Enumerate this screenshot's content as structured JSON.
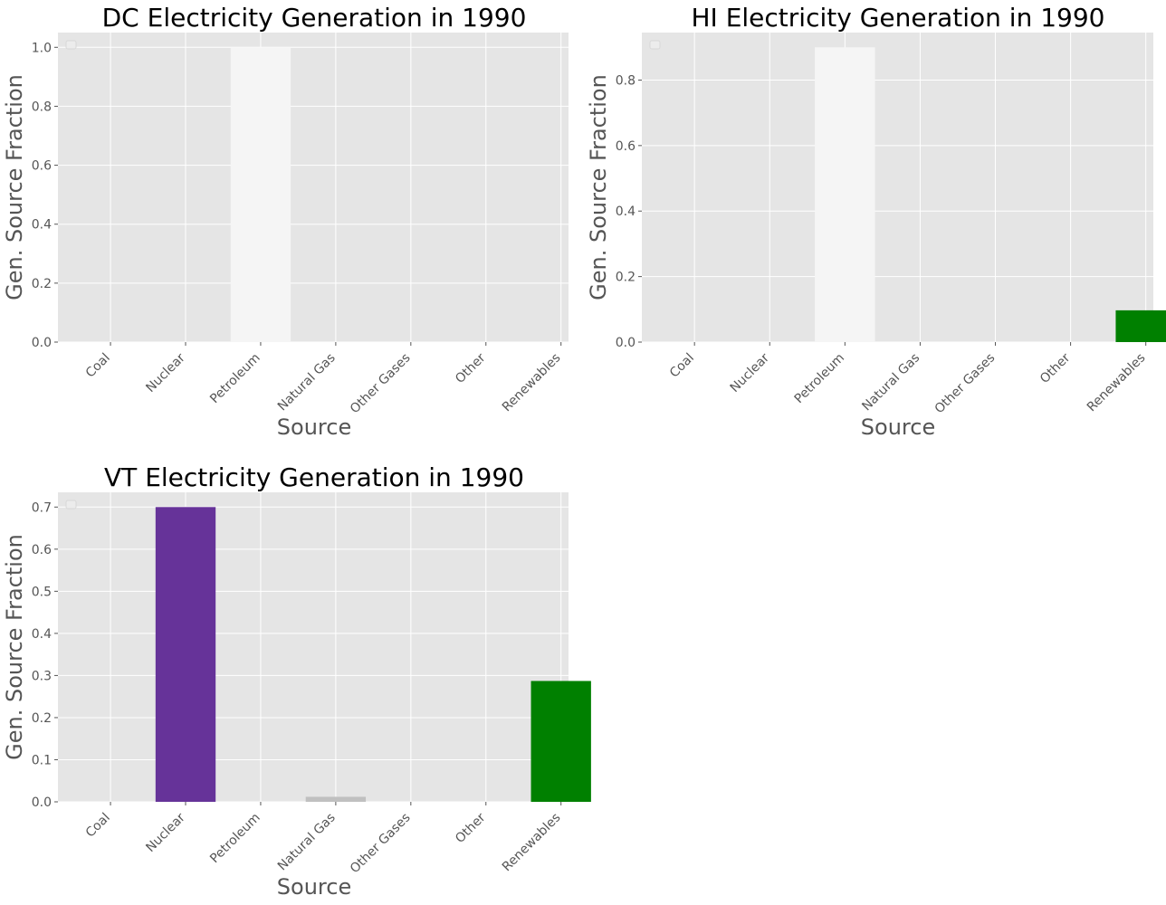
{
  "chart_data": [
    {
      "type": "bar",
      "title": "DC Electricity Generation in 1990",
      "xlabel": "Source",
      "ylabel": "Gen. Source Fraction",
      "categories": [
        "Coal",
        "Nuclear",
        "Petroleum",
        "Natural Gas",
        "Other Gases",
        "Other",
        "Renewables"
      ],
      "values": [
        0,
        0,
        1.0,
        0,
        0,
        0,
        0
      ],
      "colors": [
        "#000000",
        "#663399",
        "#f5f5f5",
        "#c0c0c0",
        "#aaaaaa",
        "#888888",
        "#008000"
      ],
      "ylim": [
        0,
        1.05
      ],
      "yticks": [
        0.0,
        0.2,
        0.4,
        0.6,
        0.8,
        1.0
      ],
      "ytick_decimals": 1,
      "grid": true,
      "legend": "top-left (empty)"
    },
    {
      "type": "bar",
      "title": "HI Electricity Generation in 1990",
      "xlabel": "Source",
      "ylabel": "Gen. Source Fraction",
      "categories": [
        "Coal",
        "Nuclear",
        "Petroleum",
        "Natural Gas",
        "Other Gases",
        "Other",
        "Renewables"
      ],
      "values": [
        0,
        0,
        0.9,
        0,
        0,
        0,
        0.097
      ],
      "colors": [
        "#000000",
        "#663399",
        "#f5f5f5",
        "#c0c0c0",
        "#aaaaaa",
        "#888888",
        "#008000"
      ],
      "ylim": [
        0,
        0.945
      ],
      "yticks": [
        0.0,
        0.2,
        0.4,
        0.6,
        0.8
      ],
      "ytick_decimals": 1,
      "grid": true,
      "legend": "top-left (empty)"
    },
    {
      "type": "bar",
      "title": "VT Electricity Generation in 1990",
      "xlabel": "Source",
      "ylabel": "Gen. Source Fraction",
      "categories": [
        "Coal",
        "Nuclear",
        "Petroleum",
        "Natural Gas",
        "Other Gases",
        "Other",
        "Renewables"
      ],
      "values": [
        0,
        0.7,
        0,
        0.012,
        0,
        0,
        0.287
      ],
      "colors": [
        "#000000",
        "#663399",
        "#f5f5f5",
        "#c0c0c0",
        "#aaaaaa",
        "#888888",
        "#008000"
      ],
      "ylim": [
        0,
        0.735
      ],
      "yticks": [
        0.0,
        0.1,
        0.2,
        0.3,
        0.4,
        0.5,
        0.6,
        0.7
      ],
      "ytick_decimals": 1,
      "grid": true,
      "legend": "top-left (empty)"
    }
  ],
  "style": {
    "axes_background": "#e5e5e5",
    "grid_color": "#ffffff",
    "text_color": "#555555",
    "title_color": "#000000"
  }
}
